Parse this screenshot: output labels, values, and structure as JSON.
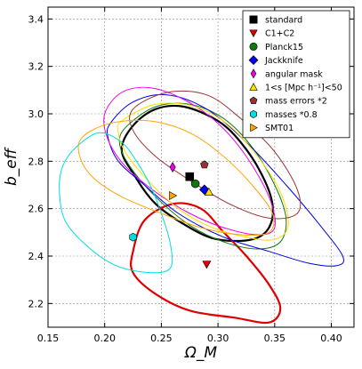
{
  "chart_data": {
    "type": "scatter",
    "title": "",
    "xlabel": "Ω_M",
    "ylabel": "b_eff",
    "xlim": [
      0.15,
      0.42
    ],
    "ylim": [
      2.1,
      3.45
    ],
    "xticks": [
      0.15,
      0.2,
      0.25,
      0.3,
      0.35,
      0.4
    ],
    "xtick_labels": [
      "0.15",
      "0.20",
      "0.25",
      "0.30",
      "0.35",
      "0.40"
    ],
    "yticks": [
      2.2,
      2.4,
      2.6,
      2.8,
      3.0,
      3.2,
      3.4
    ],
    "ytick_labels": [
      "2.2",
      "2.4",
      "2.6",
      "2.8",
      "3.0",
      "3.2",
      "3.4"
    ],
    "grid": true,
    "legend_position": "top-right",
    "series": [
      {
        "name": "standard",
        "color": "#000000",
        "marker": "square",
        "point": [
          0.275,
          2.735
        ],
        "contour": [
          [
            0.225,
            2.95
          ],
          [
            0.245,
            3.02
          ],
          [
            0.27,
            3.03
          ],
          [
            0.3,
            2.97
          ],
          [
            0.32,
            2.88
          ],
          [
            0.338,
            2.75
          ],
          [
            0.348,
            2.62
          ],
          [
            0.345,
            2.52
          ],
          [
            0.33,
            2.47
          ],
          [
            0.3,
            2.47
          ],
          [
            0.275,
            2.52
          ],
          [
            0.245,
            2.62
          ],
          [
            0.225,
            2.75
          ],
          [
            0.215,
            2.85
          ]
        ],
        "contour_width": 2.2
      },
      {
        "name": "C1+C2",
        "color": "#dd0000",
        "marker": "triangle-down",
        "point": [
          0.29,
          2.365
        ],
        "contour": [
          [
            0.235,
            2.55
          ],
          [
            0.26,
            2.62
          ],
          [
            0.285,
            2.6
          ],
          [
            0.305,
            2.5
          ],
          [
            0.325,
            2.4
          ],
          [
            0.345,
            2.28
          ],
          [
            0.355,
            2.18
          ],
          [
            0.345,
            2.12
          ],
          [
            0.315,
            2.14
          ],
          [
            0.275,
            2.17
          ],
          [
            0.245,
            2.24
          ],
          [
            0.225,
            2.33
          ],
          [
            0.225,
            2.42
          ]
        ],
        "contour_width": 2.2
      },
      {
        "name": "Planck15",
        "color": "#117711",
        "marker": "circle",
        "point": [
          0.28,
          2.705
        ],
        "contour": [
          [
            0.22,
            2.95
          ],
          [
            0.245,
            3.03
          ],
          [
            0.275,
            3.04
          ],
          [
            0.305,
            2.98
          ],
          [
            0.33,
            2.86
          ],
          [
            0.35,
            2.7
          ],
          [
            0.36,
            2.56
          ],
          [
            0.355,
            2.46
          ],
          [
            0.335,
            2.43
          ],
          [
            0.305,
            2.46
          ],
          [
            0.275,
            2.53
          ],
          [
            0.245,
            2.65
          ],
          [
            0.222,
            2.78
          ],
          [
            0.213,
            2.88
          ]
        ],
        "contour_width": 1.0
      },
      {
        "name": "Jackknife",
        "color": "#0000ee",
        "marker": "diamond",
        "point": [
          0.288,
          2.68
        ],
        "contour": [
          [
            0.205,
            2.96
          ],
          [
            0.225,
            3.05
          ],
          [
            0.255,
            3.08
          ],
          [
            0.29,
            3.02
          ],
          [
            0.325,
            2.88
          ],
          [
            0.36,
            2.7
          ],
          [
            0.39,
            2.53
          ],
          [
            0.41,
            2.4
          ],
          [
            0.405,
            2.36
          ],
          [
            0.38,
            2.37
          ],
          [
            0.345,
            2.42
          ],
          [
            0.305,
            2.48
          ],
          [
            0.265,
            2.58
          ],
          [
            0.235,
            2.7
          ],
          [
            0.212,
            2.8
          ],
          [
            0.203,
            2.9
          ]
        ],
        "contour_width": 1.0
      },
      {
        "name": "angular mask",
        "color": "#ee00ee",
        "marker": "diamond-thin",
        "point": [
          0.26,
          2.775
        ],
        "contour": [
          [
            0.2,
            3.0
          ],
          [
            0.215,
            3.09
          ],
          [
            0.24,
            3.11
          ],
          [
            0.27,
            3.06
          ],
          [
            0.3,
            2.96
          ],
          [
            0.325,
            2.82
          ],
          [
            0.345,
            2.65
          ],
          [
            0.35,
            2.52
          ],
          [
            0.335,
            2.49
          ],
          [
            0.305,
            2.52
          ],
          [
            0.275,
            2.58
          ],
          [
            0.245,
            2.67
          ],
          [
            0.218,
            2.78
          ],
          [
            0.203,
            2.89
          ]
        ],
        "contour_width": 1.0
      },
      {
        "name": "1<s [Mpc h⁻¹]<50",
        "color": "#ffdd00",
        "marker": "triangle-up",
        "point": [
          0.292,
          2.67
        ],
        "contour": [
          [
            0.215,
            2.97
          ],
          [
            0.245,
            3.04
          ],
          [
            0.28,
            3.03
          ],
          [
            0.31,
            2.95
          ],
          [
            0.335,
            2.82
          ],
          [
            0.355,
            2.67
          ],
          [
            0.362,
            2.53
          ],
          [
            0.35,
            2.47
          ],
          [
            0.325,
            2.48
          ],
          [
            0.295,
            2.52
          ],
          [
            0.265,
            2.6
          ],
          [
            0.238,
            2.72
          ],
          [
            0.218,
            2.84
          ],
          [
            0.212,
            2.92
          ]
        ],
        "contour_width": 1.0
      },
      {
        "name": "mass errors *2",
        "color": "#993333",
        "marker": "pentagon",
        "point": [
          0.288,
          2.785
        ],
        "contour": [
          [
            0.225,
            3.02
          ],
          [
            0.255,
            3.09
          ],
          [
            0.29,
            3.08
          ],
          [
            0.32,
            2.98
          ],
          [
            0.35,
            2.84
          ],
          [
            0.37,
            2.68
          ],
          [
            0.37,
            2.58
          ],
          [
            0.345,
            2.56
          ],
          [
            0.31,
            2.62
          ],
          [
            0.275,
            2.72
          ],
          [
            0.245,
            2.82
          ],
          [
            0.225,
            2.93
          ]
        ],
        "contour_width": 1.0
      },
      {
        "name": "masses *0.8",
        "color": "#00dddd",
        "marker": "hexagon",
        "point": [
          0.225,
          2.48
        ],
        "contour": [
          [
            0.175,
            2.86
          ],
          [
            0.195,
            2.92
          ],
          [
            0.215,
            2.88
          ],
          [
            0.228,
            2.8
          ],
          [
            0.24,
            2.7
          ],
          [
            0.25,
            2.58
          ],
          [
            0.258,
            2.45
          ],
          [
            0.258,
            2.35
          ],
          [
            0.24,
            2.33
          ],
          [
            0.21,
            2.36
          ],
          [
            0.185,
            2.44
          ],
          [
            0.165,
            2.55
          ],
          [
            0.16,
            2.68
          ],
          [
            0.163,
            2.78
          ]
        ],
        "contour_width": 1.0
      },
      {
        "name": "SMT01",
        "color": "#ffa500",
        "marker": "triangle-right",
        "point": [
          0.26,
          2.655
        ],
        "contour": [
          [
            0.18,
            2.9
          ],
          [
            0.205,
            2.96
          ],
          [
            0.24,
            2.97
          ],
          [
            0.275,
            2.92
          ],
          [
            0.305,
            2.82
          ],
          [
            0.33,
            2.7
          ],
          [
            0.348,
            2.58
          ],
          [
            0.345,
            2.5
          ],
          [
            0.32,
            2.49
          ],
          [
            0.285,
            2.52
          ],
          [
            0.25,
            2.58
          ],
          [
            0.215,
            2.65
          ],
          [
            0.19,
            2.73
          ],
          [
            0.178,
            2.82
          ]
        ],
        "contour_width": 1.0
      }
    ]
  }
}
